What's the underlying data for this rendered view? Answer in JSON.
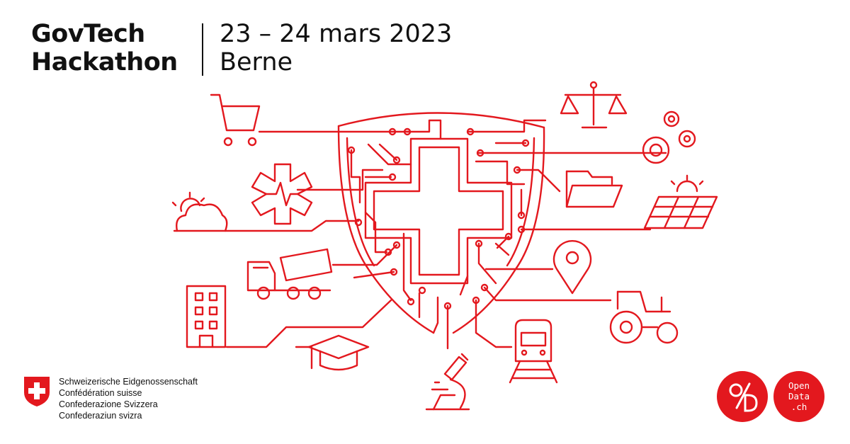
{
  "event": {
    "title_line1": "GovTech",
    "title_line2": "Hackathon",
    "date": "23 – 24 mars 2023",
    "city": "Berne"
  },
  "federal": {
    "lines": [
      "Schweizerische Eidgenossenschaft",
      "Confédération suisse",
      "Confederazione Svizzera",
      "Confederaziun svizra"
    ]
  },
  "badges": {
    "opendata_label": "Open",
    "opendata_label2": "Data",
    "opendata_label3": ".ch"
  },
  "colors": {
    "accent": "#e3181e",
    "text": "#111111",
    "background": "#ffffff"
  },
  "icons": [
    "shopping-cart-icon",
    "scales-icon",
    "gears-icon",
    "medical-star-icon",
    "folder-icon",
    "weather-icon",
    "solar-panel-icon",
    "cement-truck-icon",
    "map-pin-icon",
    "building-icon",
    "tractor-icon",
    "graduation-cap-icon",
    "train-icon",
    "microscope-icon",
    "swiss-shield-icon"
  ]
}
